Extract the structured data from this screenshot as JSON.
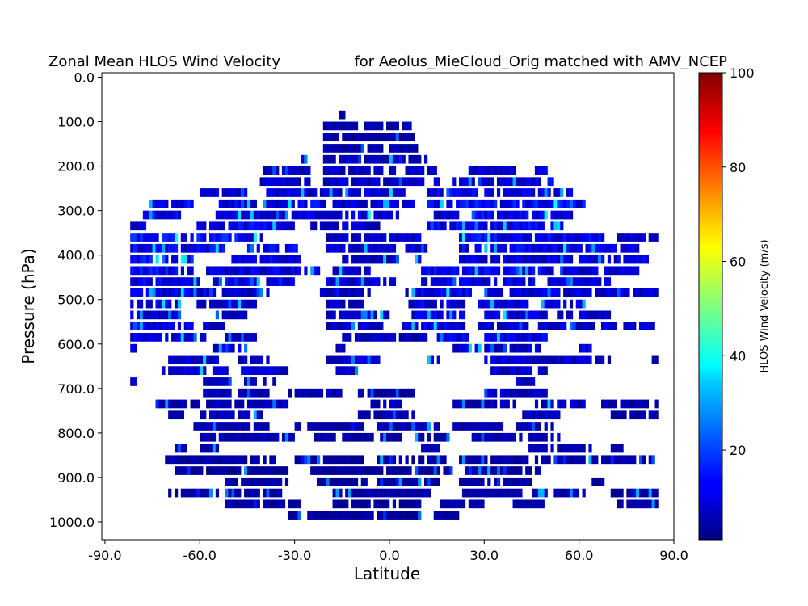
{
  "chart_data": {
    "type": "heatmap",
    "title_left": "Zonal Mean HLOS Wind Velocity",
    "title_right": "for Aeolus_MieCloud_Orig matched with AMV_NCEP",
    "xlabel": "Latitude",
    "ylabel": "Pressure (hPa)",
    "xlim": [
      -91,
      90
    ],
    "ylim": [
      1040,
      -10
    ],
    "y_inverted": true,
    "xticks": [
      -90,
      -60,
      -30,
      0,
      30,
      60,
      90
    ],
    "xtick_labels": [
      "-90.0",
      "-60.0",
      "-30.0",
      "0.0",
      "30.0",
      "60.0",
      "90.0"
    ],
    "yticks": [
      0,
      100,
      200,
      300,
      400,
      500,
      600,
      700,
      800,
      900,
      1000
    ],
    "ytick_labels": [
      "0.0",
      "100.0",
      "200.0",
      "300.0",
      "400.0",
      "500.0",
      "600.0",
      "700.0",
      "800.0",
      "900.0",
      "1000.0"
    ],
    "colormap": "jet",
    "colorbar": {
      "label": "HLOS Wind Velocity (m/s)",
      "vmin": 1,
      "vmax": 100,
      "ticks": [
        20,
        40,
        60,
        80,
        100
      ],
      "tick_labels": [
        "20",
        "40",
        "60",
        "80",
        "100"
      ]
    },
    "grid": false,
    "cell_width_deg": 1,
    "cell_height_hpa": 25,
    "bands": [
      {
        "p": 87.5,
        "segments": [
          [
            -16,
            -14,
            3
          ]
        ]
      },
      {
        "p": 112.5,
        "segments": [
          [
            -21,
            -10,
            5
          ],
          [
            -8,
            8,
            6
          ]
        ]
      },
      {
        "p": 137.5,
        "segments": [
          [
            -21,
            8,
            5
          ]
        ]
      },
      {
        "p": 162.5,
        "segments": [
          [
            -21,
            10,
            6
          ]
        ]
      },
      {
        "p": 187.5,
        "segments": [
          [
            -28,
            -26,
            14
          ],
          [
            -21,
            12,
            7
          ]
        ]
      },
      {
        "p": 212.5,
        "segments": [
          [
            -40,
            -25,
            8
          ],
          [
            -21,
            15,
            8
          ],
          [
            25,
            40,
            9
          ],
          [
            45,
            50,
            10
          ]
        ]
      },
      {
        "p": 237.5,
        "segments": [
          [
            -41,
            -25,
            9
          ],
          [
            -21,
            17,
            9
          ],
          [
            20,
            48,
            10
          ],
          [
            50,
            52,
            14
          ]
        ]
      },
      {
        "p": 262.5,
        "segments": [
          [
            -60,
            -45,
            12
          ],
          [
            -39,
            5,
            10
          ],
          [
            12,
            28,
            12
          ],
          [
            30,
            58,
            11
          ]
        ]
      },
      {
        "p": 287.5,
        "segments": [
          [
            -76,
            -62,
            13
          ],
          [
            -54,
            -20,
            12
          ],
          [
            -18,
            8,
            10
          ],
          [
            12,
            62,
            14
          ]
        ]
      },
      {
        "p": 312.5,
        "segments": [
          [
            -80,
            -66,
            12
          ],
          [
            -55,
            4,
            11
          ],
          [
            14,
            22,
            10
          ],
          [
            26,
            58,
            13
          ]
        ]
      },
      {
        "p": 337.5,
        "segments": [
          [
            -82,
            -77,
            10
          ],
          [
            -61,
            -30,
            13
          ],
          [
            -25,
            -3,
            8
          ],
          [
            12,
            55,
            12
          ]
        ]
      },
      {
        "p": 362.5,
        "segments": [
          [
            -82,
            -40,
            14
          ],
          [
            -20,
            -9,
            9
          ],
          [
            -8,
            10,
            9
          ],
          [
            22,
            68,
            13
          ],
          [
            72,
            85,
            8
          ]
        ]
      },
      {
        "p": 387.5,
        "segments": [
          [
            -82,
            -52,
            13
          ],
          [
            -45,
            -29,
            12
          ],
          [
            -20,
            2,
            9
          ],
          [
            5,
            12,
            11
          ],
          [
            22,
            79,
            12
          ]
        ]
      },
      {
        "p": 412.5,
        "segments": [
          [
            -82,
            -62,
            14
          ],
          [
            -50,
            -28,
            12
          ],
          [
            -15,
            3,
            8
          ],
          [
            8,
            10,
            12
          ],
          [
            22,
            82,
            11
          ]
        ]
      },
      {
        "p": 437.5,
        "segments": [
          [
            -82,
            -62,
            13
          ],
          [
            -58,
            -22,
            11
          ],
          [
            -18,
            -5,
            9
          ],
          [
            10,
            52,
            12
          ],
          [
            54,
            80,
            10
          ]
        ]
      },
      {
        "p": 462.5,
        "segments": [
          [
            -82,
            -60,
            12
          ],
          [
            -56,
            -30,
            13
          ],
          [
            -20,
            2,
            9
          ],
          [
            10,
            46,
            11
          ],
          [
            50,
            70,
            10
          ]
        ]
      },
      {
        "p": 487.5,
        "segments": [
          [
            -82,
            -55,
            11
          ],
          [
            -53,
            -38,
            10
          ],
          [
            -22,
            -6,
            7
          ],
          [
            5,
            26,
            12
          ],
          [
            30,
            85,
            10
          ]
        ]
      },
      {
        "p": 512.5,
        "segments": [
          [
            -82,
            -66,
            11
          ],
          [
            -62,
            -42,
            10
          ],
          [
            -20,
            -8,
            8
          ],
          [
            6,
            24,
            11
          ],
          [
            28,
            44,
            10
          ],
          [
            48,
            62,
            9
          ]
        ]
      },
      {
        "p": 537.5,
        "segments": [
          [
            -82,
            -66,
            10
          ],
          [
            -55,
            -45,
            9
          ],
          [
            -20,
            0,
            8
          ],
          [
            6,
            24,
            12
          ],
          [
            30,
            58,
            10
          ],
          [
            60,
            70,
            9
          ]
        ]
      },
      {
        "p": 562.5,
        "segments": [
          [
            -82,
            -62,
            11
          ],
          [
            -60,
            -52,
            9
          ],
          [
            -20,
            -2,
            8
          ],
          [
            4,
            24,
            11
          ],
          [
            28,
            84,
            10
          ]
        ]
      },
      {
        "p": 587.5,
        "segments": [
          [
            -82,
            -58,
            10
          ],
          [
            -52,
            -42,
            9
          ],
          [
            -15,
            12,
            7
          ],
          [
            15,
            25,
            12
          ],
          [
            30,
            50,
            11
          ]
        ]
      },
      {
        "p": 612.5,
        "segments": [
          [
            -82,
            -80,
            12
          ],
          [
            -56,
            -45,
            10
          ],
          [
            -18,
            -14,
            9
          ],
          [
            20,
            48,
            10
          ],
          [
            60,
            64,
            11
          ]
        ]
      },
      {
        "p": 637.5,
        "segments": [
          [
            -70,
            -54,
            10
          ],
          [
            -48,
            -38,
            9
          ],
          [
            -20,
            -2,
            8
          ],
          [
            12,
            16,
            10
          ],
          [
            30,
            70,
            9
          ],
          [
            82,
            85,
            7
          ]
        ]
      },
      {
        "p": 662.5,
        "segments": [
          [
            -72,
            -50,
            9
          ],
          [
            -48,
            -32,
            10
          ],
          [
            -18,
            -10,
            8
          ],
          [
            32,
            50,
            9
          ]
        ]
      },
      {
        "p": 687.5,
        "segments": [
          [
            -82,
            -80,
            8
          ],
          [
            -60,
            -50,
            7
          ],
          [
            -46,
            -36,
            8
          ],
          [
            40,
            48,
            9
          ]
        ]
      },
      {
        "p": 712.5,
        "segments": [
          [
            -59,
            -38,
            7
          ],
          [
            -32,
            -15,
            6
          ],
          [
            -10,
            8,
            5
          ],
          [
            30,
            50,
            8
          ]
        ]
      },
      {
        "p": 737.5,
        "segments": [
          [
            -74,
            -60,
            6
          ],
          [
            -58,
            -32,
            7
          ],
          [
            -6,
            4,
            6
          ],
          [
            20,
            40,
            7
          ],
          [
            46,
            62,
            8
          ],
          [
            66,
            85,
            6
          ]
        ]
      },
      {
        "p": 762.5,
        "segments": [
          [
            -70,
            -65,
            5
          ],
          [
            -60,
            -40,
            7
          ],
          [
            -10,
            8,
            6
          ],
          [
            42,
            54,
            7
          ],
          [
            70,
            85,
            5
          ]
        ]
      },
      {
        "p": 787.5,
        "segments": [
          [
            -62,
            -38,
            6
          ],
          [
            -30,
            -8,
            5
          ],
          [
            -4,
            16,
            6
          ],
          [
            20,
            36,
            6
          ],
          [
            40,
            52,
            7
          ]
        ]
      },
      {
        "p": 812.5,
        "segments": [
          [
            -60,
            -30,
            6
          ],
          [
            -24,
            4,
            5
          ],
          [
            8,
            20,
            5
          ],
          [
            26,
            54,
            6
          ]
        ]
      },
      {
        "p": 837.5,
        "segments": [
          [
            -68,
            -64,
            5
          ],
          [
            -60,
            -54,
            6
          ],
          [
            10,
            16,
            6
          ],
          [
            44,
            64,
            6
          ],
          [
            70,
            75,
            5
          ]
        ]
      },
      {
        "p": 862.5,
        "segments": [
          [
            -72,
            -36,
            5
          ],
          [
            -30,
            -8,
            4
          ],
          [
            -4,
            18,
            5
          ],
          [
            22,
            44,
            5
          ],
          [
            46,
            85,
            6
          ]
        ]
      },
      {
        "p": 887.5,
        "segments": [
          [
            -68,
            -32,
            4
          ],
          [
            -26,
            20,
            4
          ],
          [
            24,
            48,
            5
          ]
        ]
      },
      {
        "p": 912.5,
        "segments": [
          [
            -52,
            -32,
            5
          ],
          [
            -24,
            16,
            4
          ],
          [
            22,
            46,
            5
          ],
          [
            64,
            68,
            5
          ]
        ]
      },
      {
        "p": 937.5,
        "segments": [
          [
            -70,
            -34,
            5
          ],
          [
            -18,
            14,
            5
          ],
          [
            22,
            50,
            6
          ],
          [
            52,
            62,
            6
          ],
          [
            70,
            85,
            5
          ]
        ]
      },
      {
        "p": 962.5,
        "segments": [
          [
            -52,
            -28,
            4
          ],
          [
            -18,
            10,
            4
          ],
          [
            16,
            30,
            5
          ],
          [
            38,
            50,
            5
          ],
          [
            72,
            85,
            5
          ]
        ]
      },
      {
        "p": 987.5,
        "segments": [
          [
            -32,
            10,
            4
          ],
          [
            14,
            22,
            5
          ]
        ]
      }
    ]
  }
}
